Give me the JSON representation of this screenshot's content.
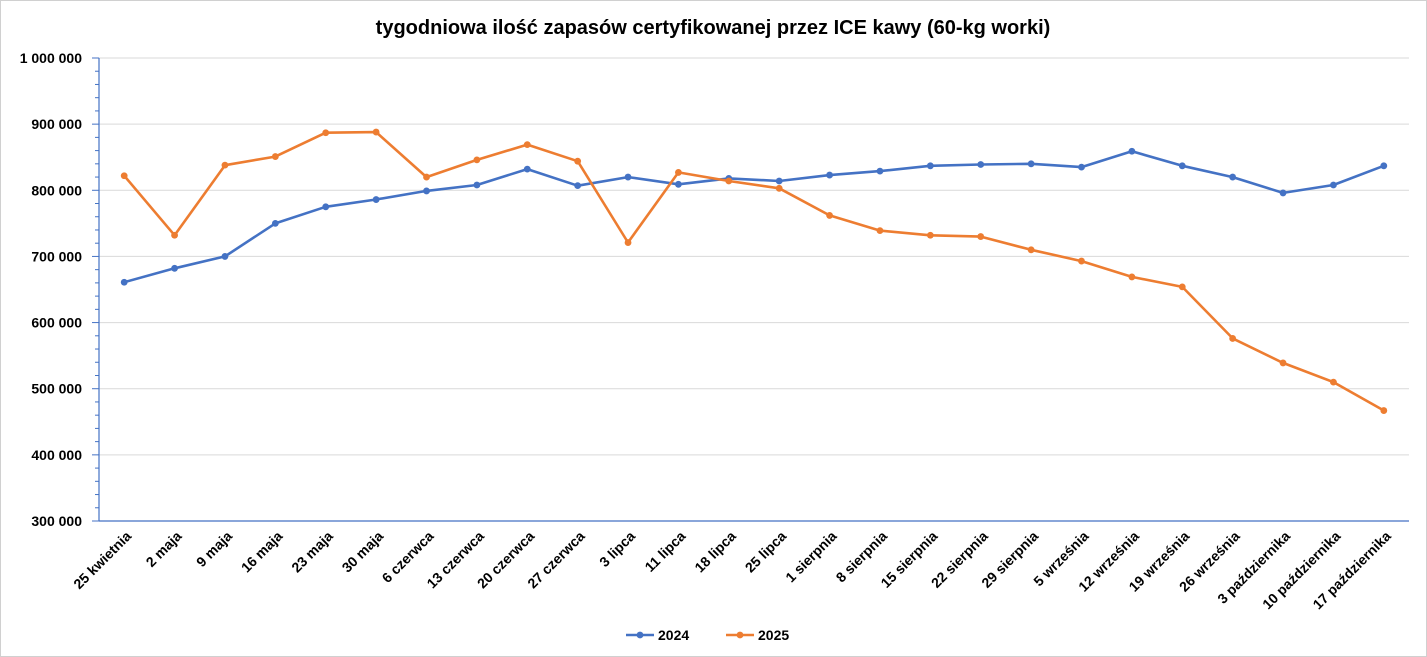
{
  "chart_data": {
    "type": "line",
    "title": "tygodniowa ilość zapasów certyfikowanej przez ICE kawy (60-kg worki)",
    "xlabel": "",
    "ylabel": "",
    "ylim": [
      300000,
      1000000
    ],
    "yticks": [
      300000,
      400000,
      500000,
      600000,
      700000,
      800000,
      900000,
      1000000
    ],
    "ytick_labels": [
      "300 000",
      "400 000",
      "500 000",
      "600 000",
      "700 000",
      "800 000",
      "900 000",
      "1 000 000"
    ],
    "grid": true,
    "legend_position": "bottom-center",
    "categories": [
      "25 kwietnia",
      "2 maja",
      "9 maja",
      "16 maja",
      "23 maja",
      "30 maja",
      "6 czerwca",
      "13 czerwca",
      "20 czerwca",
      "27 czerwca",
      "3 lipca",
      "11 lipca",
      "18 lipca",
      "25 lipca",
      "1 sierpnia",
      "8 sierpnia",
      "15 sierpnia",
      "22 sierpnia",
      "29 sierpnia",
      "5 września",
      "12 września",
      "19 września",
      "26 września",
      "3 października",
      "10 października",
      "17 października"
    ],
    "series": [
      {
        "name": "2024",
        "color": "#4472C4",
        "values": [
          661000,
          682000,
          700000,
          750000,
          775000,
          786000,
          799000,
          808000,
          832000,
          807000,
          820000,
          809000,
          818000,
          814000,
          823000,
          829000,
          837000,
          839000,
          840000,
          835000,
          859000,
          837000,
          820000,
          796000,
          808000,
          837000
        ]
      },
      {
        "name": "2025",
        "color": "#ED7D31",
        "values": [
          822000,
          732000,
          838000,
          851000,
          887000,
          888000,
          820000,
          846000,
          869000,
          844000,
          721000,
          827000,
          814000,
          803000,
          762000,
          739000,
          732000,
          730000,
          710000,
          693000,
          669000,
          654000,
          576000,
          539000,
          510000,
          467000
        ]
      }
    ]
  }
}
